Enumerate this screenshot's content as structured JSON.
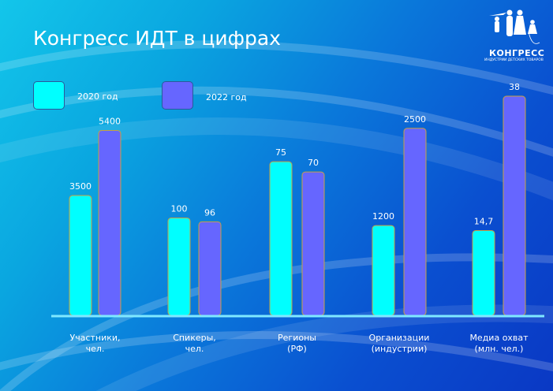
{
  "title": "Конгресс ИДТ в цифрах",
  "logo": {
    "name": "КОНГРЕСС",
    "subtitle": "ИНДУСТРИИ ДЕТСКИХ ТОВАРОВ"
  },
  "colors": {
    "series_2020": "#00ffff",
    "series_2022": "#6666ff",
    "bar_border": "#c8a040",
    "baseline": "#7fe8ff"
  },
  "chart_data": {
    "type": "bar",
    "title": "Конгресс ИДТ в цифрах",
    "legend_position": "top-left",
    "categories": [
      "Участники,\nчел.",
      "Спикеры,\nчел.",
      "Регионы\n(РФ)",
      "Организации\n(индустрии)",
      "Медиа охват\n(млн. чел.)"
    ],
    "category_lines": [
      [
        "Участники,",
        "чел."
      ],
      [
        "Спикеры,",
        "чел."
      ],
      [
        "Регионы",
        "(РФ)"
      ],
      [
        "Организации",
        "(индустрии)"
      ],
      [
        "Медиа охват",
        "(млн. чел.)"
      ]
    ],
    "per_category_ylim": [
      [
        0,
        6400
      ],
      [
        0,
        225
      ],
      [
        0,
        107
      ],
      [
        0,
        2930
      ],
      [
        0,
        38
      ]
    ],
    "series": [
      {
        "name": "2020 год",
        "values": [
          3500,
          100,
          75,
          1200,
          14.7
        ],
        "labels": [
          "3500",
          "100",
          "75",
          "1200",
          "14,7"
        ]
      },
      {
        "name": "2022 год",
        "values": [
          5400,
          96,
          70,
          2500,
          38
        ],
        "labels": [
          "5400",
          "96",
          "70",
          "2500",
          "38"
        ]
      }
    ]
  }
}
